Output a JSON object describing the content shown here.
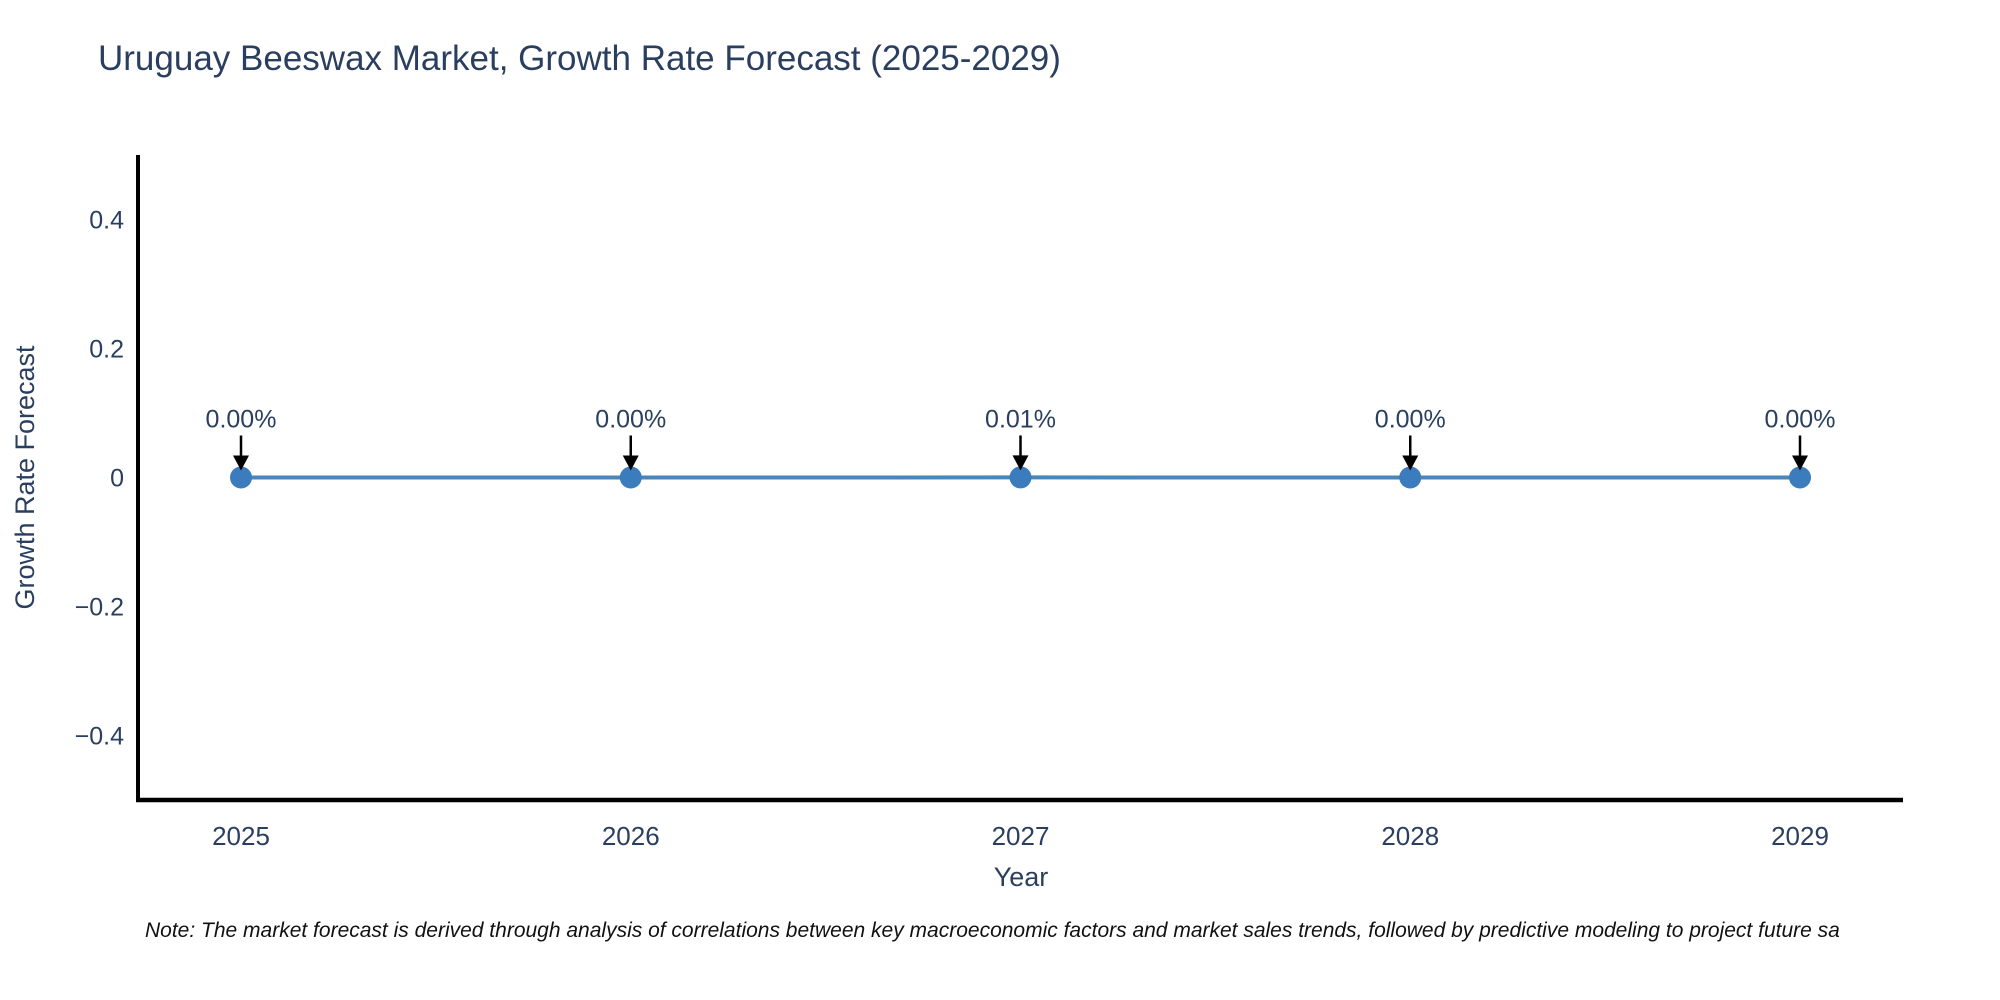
{
  "page": {
    "background": "#ffffff"
  },
  "chart_data": {
    "type": "line",
    "title": "Uruguay Beeswax Market, Growth Rate Forecast (2025-2029)",
    "xlabel": "Year",
    "ylabel": "Growth Rate Forecast",
    "categories": [
      "2025",
      "2026",
      "2027",
      "2028",
      "2029"
    ],
    "series": [
      {
        "name": "Growth Rate Forecast",
        "values": [
          0,
          0,
          0.0001,
          0,
          0
        ]
      }
    ],
    "point_labels": [
      "0.00%",
      "0.00%",
      "0.01%",
      "0.00%",
      "0.00%"
    ],
    "ylim": [
      -0.5,
      0.5
    ],
    "yticks": [
      {
        "value": 0.4,
        "label": "0.4"
      },
      {
        "value": 0.2,
        "label": "0.2"
      },
      {
        "value": 0,
        "label": "0"
      },
      {
        "value": -0.2,
        "label": "−0.2"
      },
      {
        "value": -0.4,
        "label": "−0.4"
      }
    ],
    "grid": false,
    "legend": "none",
    "colors": {
      "line": "#4a86b8",
      "marker": "#3b7cbd",
      "axis": "#000000",
      "text": "#2a3f5f",
      "annotation_arrow": "#000000"
    }
  },
  "footnote": "Note: The market forecast is derived through analysis of correlations between key macroeconomic factors and market sales trends, followed by predictive modeling to project future sa"
}
